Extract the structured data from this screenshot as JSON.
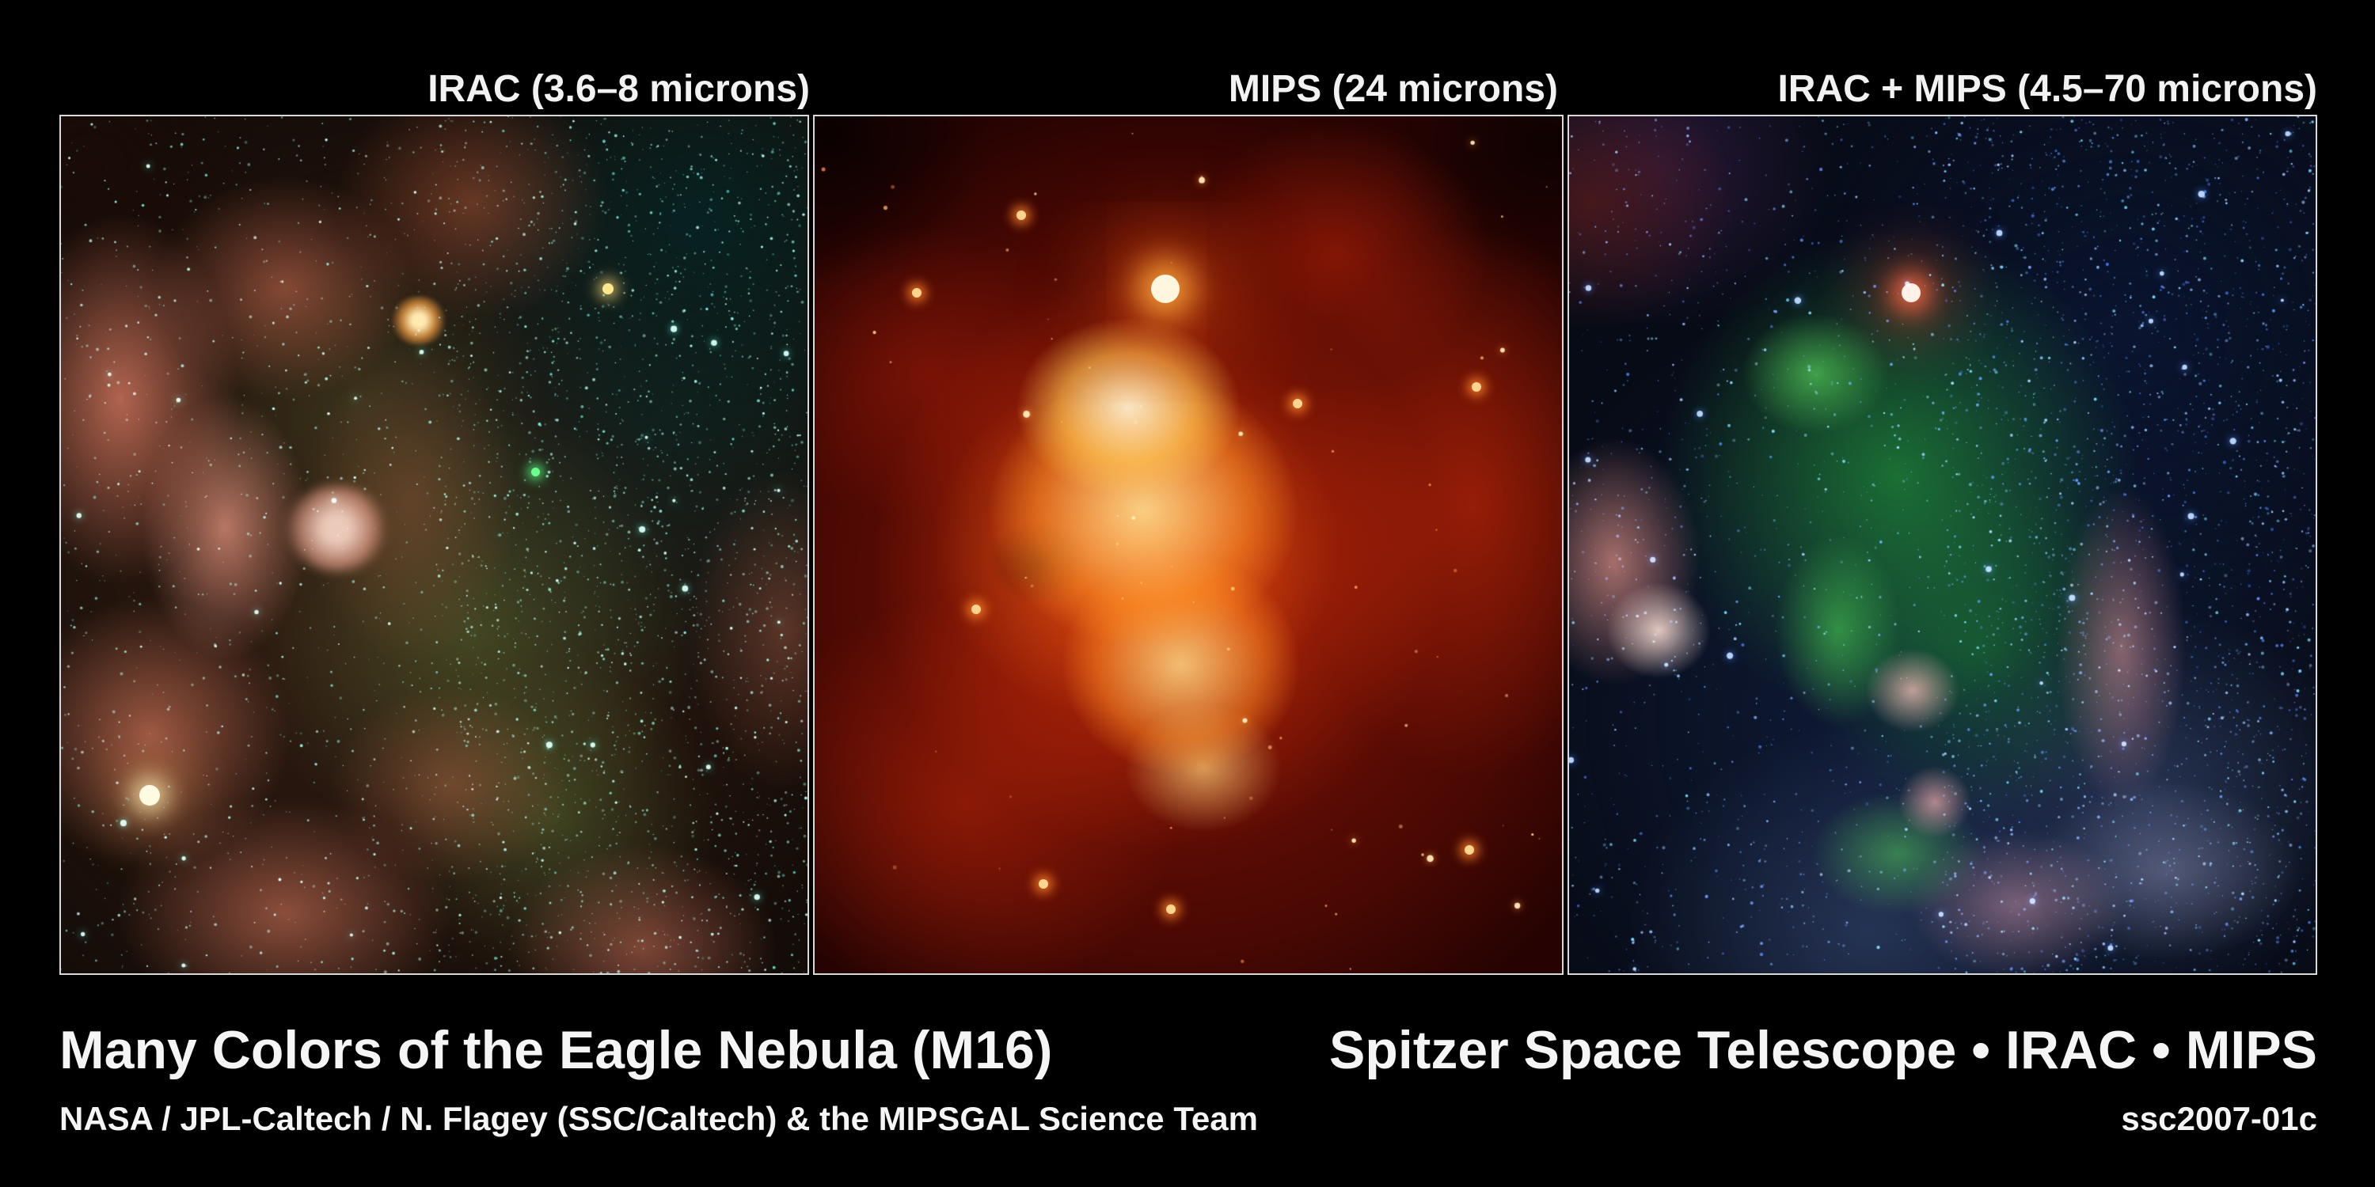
{
  "header": {
    "panel_labels": [
      "IRAC (3.6–8 microns)",
      "MIPS (24 microns)",
      "IRAC + MIPS (4.5–70 microns)"
    ]
  },
  "panels": [
    {
      "id": "irac",
      "label": "IRAC (3.6–8 microns)",
      "description": "rust-red and olive-green nebula with dense cyan starfield, dark teal upper right",
      "stars": {
        "seed": 11,
        "count": 3500,
        "min_size": 0.6,
        "max_size": 2.0,
        "bright_count": 26,
        "bias": "right",
        "palette": [
          "#7ff2dd",
          "#a9fff1",
          "#59d8c4",
          "#c8fff4",
          "#8fe8d8"
        ],
        "bright_color": "#d9fff6",
        "glow": "#40e8d0"
      }
    },
    {
      "id": "mips",
      "label": "MIPS (24 microns)",
      "description": "fiery red nebula with bright yellow-white central region and dark corners",
      "stars": {
        "seed": 7,
        "count": 60,
        "min_size": 1.0,
        "max_size": 2.6,
        "bright_count": 9,
        "bias": "none",
        "palette": [
          "#ffb066",
          "#ff8848",
          "#ffd490"
        ],
        "bright_color": "#ffe8b8",
        "glow": "#ff9030"
      }
    },
    {
      "id": "irac-mips",
      "label": "IRAC + MIPS (4.5–70 microns)",
      "description": "blue starfield with bright green central glow and pink pillar clouds",
      "stars": {
        "seed": 23,
        "count": 3700,
        "min_size": 0.6,
        "max_size": 2.1,
        "bright_count": 28,
        "bias": "right",
        "palette": [
          "#5d8cff",
          "#86b1ff",
          "#3f6ce0",
          "#9cc6ff",
          "#6fd8ff"
        ],
        "bright_color": "#bcd8ff",
        "glow": "#4a86ff"
      }
    }
  ],
  "footer": {
    "title": "Many Colors of the Eagle Nebula (M16)",
    "mission": "Spitzer Space Telescope • IRAC • MIPS",
    "credit": "NASA / JPL-Caltech / N. Flagey (SSC/Caltech) & the MIPSGAL Science Team",
    "release_id": "ssc2007-01c"
  },
  "colors": {
    "background": "#000000",
    "text": "#f2f2f2",
    "panel_border": "#d9d9d9",
    "p2_dot": "#ffd390"
  }
}
